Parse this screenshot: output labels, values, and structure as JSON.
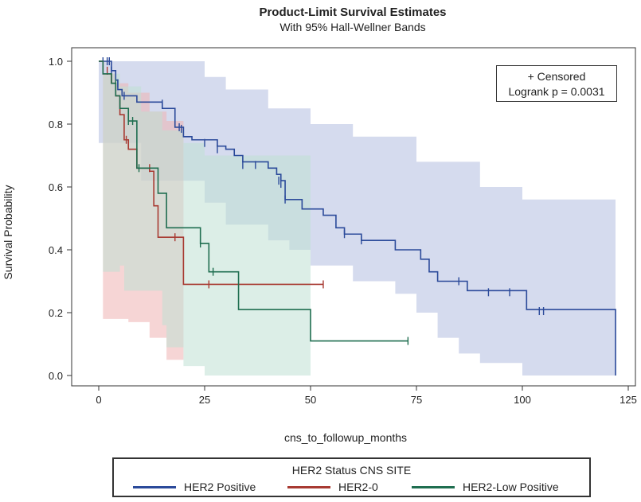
{
  "chart_data": {
    "type": "line",
    "title": "Product-Limit Survival Estimates",
    "subtitle": "With 95% Hall-Wellner Bands",
    "xlabel": "cns_to_followup_months",
    "ylabel": "Survival Probability",
    "xlim": [
      -5,
      125
    ],
    "ylim": [
      0,
      1.0
    ],
    "xticks": [
      0,
      25,
      50,
      75,
      100,
      125
    ],
    "yticks": [
      0.0,
      0.2,
      0.4,
      0.6,
      0.8,
      1.0
    ],
    "annotation": [
      "+ Censored",
      "Logrank p = 0.0031"
    ],
    "legend": {
      "title": "HER2 Status CNS SITE",
      "position": "bottom"
    },
    "series": [
      {
        "name": "HER2 Positive",
        "color": "#2b4a9a",
        "band_color": "#b3bde0",
        "steps": [
          [
            0,
            1.0
          ],
          [
            3,
            0.97
          ],
          [
            4,
            0.94
          ],
          [
            4.5,
            0.91
          ],
          [
            5.5,
            0.89
          ],
          [
            9,
            0.87
          ],
          [
            15,
            0.85
          ],
          [
            18,
            0.79
          ],
          [
            20,
            0.76
          ],
          [
            22,
            0.75
          ],
          [
            28,
            0.73
          ],
          [
            30,
            0.72
          ],
          [
            32,
            0.7
          ],
          [
            34,
            0.68
          ],
          [
            40,
            0.66
          ],
          [
            42,
            0.64
          ],
          [
            43,
            0.62
          ],
          [
            44,
            0.56
          ],
          [
            48,
            0.53
          ],
          [
            53,
            0.51
          ],
          [
            56,
            0.47
          ],
          [
            58,
            0.45
          ],
          [
            62,
            0.43
          ],
          [
            70,
            0.4
          ],
          [
            76,
            0.37
          ],
          [
            78,
            0.33
          ],
          [
            80,
            0.3
          ],
          [
            87,
            0.27
          ],
          [
            101,
            0.21
          ],
          [
            122,
            0.21
          ],
          [
            122,
            0.0
          ]
        ],
        "censored": [
          [
            1,
            1.0
          ],
          [
            2,
            1.0
          ],
          [
            2.5,
            1.0
          ],
          [
            3,
            0.97
          ],
          [
            4.5,
            0.93
          ],
          [
            6,
            0.89
          ],
          [
            15,
            0.865
          ],
          [
            19,
            0.79
          ],
          [
            19.5,
            0.785
          ],
          [
            25,
            0.74
          ],
          [
            28,
            0.72
          ],
          [
            34,
            0.67
          ],
          [
            37,
            0.67
          ],
          [
            42.5,
            0.62
          ],
          [
            43,
            0.61
          ],
          [
            44,
            0.56
          ],
          [
            58,
            0.45
          ],
          [
            62,
            0.43
          ],
          [
            85,
            0.3
          ],
          [
            92,
            0.265
          ],
          [
            97,
            0.265
          ],
          [
            104,
            0.205
          ],
          [
            105,
            0.205
          ]
        ],
        "band_upper": [
          [
            0,
            1.0
          ],
          [
            20,
            1.0
          ],
          [
            25,
            0.95
          ],
          [
            30,
            0.91
          ],
          [
            40,
            0.85
          ],
          [
            50,
            0.8
          ],
          [
            60,
            0.76
          ],
          [
            75,
            0.68
          ],
          [
            90,
            0.6
          ],
          [
            100,
            0.56
          ],
          [
            122,
            0.56
          ]
        ],
        "band_lower": [
          [
            0,
            0.92
          ],
          [
            10,
            0.74
          ],
          [
            20,
            0.62
          ],
          [
            30,
            0.55
          ],
          [
            40,
            0.48
          ],
          [
            45,
            0.43
          ],
          [
            50,
            0.4
          ],
          [
            60,
            0.35
          ],
          [
            70,
            0.3
          ],
          [
            75,
            0.26
          ],
          [
            80,
            0.2
          ],
          [
            85,
            0.12
          ],
          [
            90,
            0.07
          ],
          [
            100,
            0.04
          ],
          [
            122,
            0.0
          ]
        ]
      },
      {
        "name": "HER2-0",
        "color": "#a83a32",
        "band_color": "#eeb3b3",
        "steps": [
          [
            0,
            1.0
          ],
          [
            1,
            0.96
          ],
          [
            3,
            0.93
          ],
          [
            4,
            0.89
          ],
          [
            5,
            0.83
          ],
          [
            6,
            0.75
          ],
          [
            7,
            0.72
          ],
          [
            9,
            0.66
          ],
          [
            12,
            0.65
          ],
          [
            13,
            0.54
          ],
          [
            14,
            0.44
          ],
          [
            20,
            0.29
          ],
          [
            53,
            0.29
          ]
        ],
        "censored": [
          [
            2,
            0.97
          ],
          [
            6.5,
            0.75
          ],
          [
            12,
            0.66
          ],
          [
            18,
            0.44
          ],
          [
            26,
            0.29
          ],
          [
            53,
            0.29
          ]
        ],
        "band_upper": [
          [
            1,
            0.96
          ],
          [
            4,
            0.93
          ],
          [
            7,
            0.9
          ],
          [
            12,
            0.84
          ],
          [
            16,
            0.81
          ],
          [
            20,
            0.74
          ]
        ],
        "band_lower": [
          [
            1,
            0.16
          ],
          [
            4,
            0.18
          ],
          [
            7,
            0.18
          ],
          [
            10,
            0.17
          ],
          [
            14,
            0.12
          ],
          [
            17,
            0.05
          ],
          [
            20,
            0.05
          ]
        ]
      },
      {
        "name": "HER2-Low Positive",
        "color": "#1f6e50",
        "band_color": "#bfe0d3",
        "steps": [
          [
            0,
            1.0
          ],
          [
            1,
            0.96
          ],
          [
            3,
            0.93
          ],
          [
            4,
            0.89
          ],
          [
            5,
            0.85
          ],
          [
            7,
            0.81
          ],
          [
            9,
            0.66
          ],
          [
            14,
            0.58
          ],
          [
            16,
            0.47
          ],
          [
            24,
            0.42
          ],
          [
            26,
            0.33
          ],
          [
            33,
            0.21
          ],
          [
            50,
            0.11
          ],
          [
            73,
            0.11
          ]
        ],
        "censored": [
          [
            4,
            0.93
          ],
          [
            7,
            0.81
          ],
          [
            8,
            0.81
          ],
          [
            9.5,
            0.66
          ],
          [
            24,
            0.42
          ],
          [
            27,
            0.33
          ],
          [
            73,
            0.11
          ]
        ],
        "band_upper": [
          [
            1,
            0.96
          ],
          [
            5,
            0.92
          ],
          [
            10,
            0.84
          ],
          [
            15,
            0.78
          ],
          [
            20,
            0.74
          ],
          [
            25,
            0.7
          ],
          [
            50,
            0.68
          ]
        ],
        "band_lower": [
          [
            1,
            0.33
          ],
          [
            6,
            0.35
          ],
          [
            10,
            0.27
          ],
          [
            16,
            0.16
          ],
          [
            20,
            0.09
          ],
          [
            25,
            0.03
          ],
          [
            33,
            0.0
          ],
          [
            50,
            0.0
          ]
        ]
      }
    ]
  }
}
